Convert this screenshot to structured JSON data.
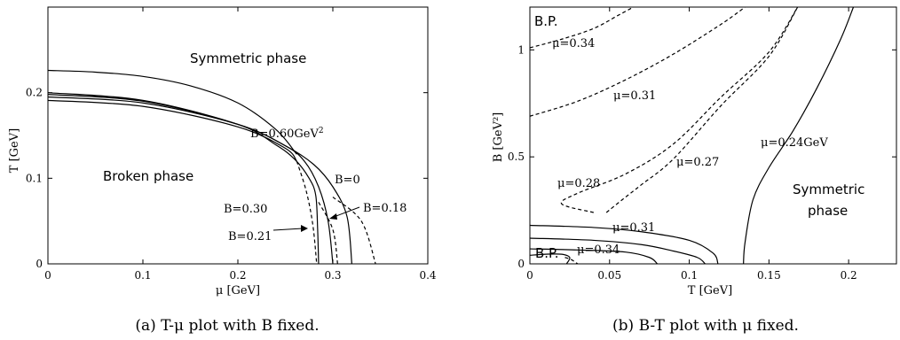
{
  "chart_data": [
    {
      "id": "a",
      "type": "line",
      "caption": "(a) T-μ plot with B fixed.",
      "xlabel": "μ [GeV]",
      "ylabel": "T [GeV]",
      "xlim": [
        0,
        0.4
      ],
      "ylim": [
        0,
        0.3
      ],
      "xticks": [
        "0",
        "0.1",
        "0.2",
        "0.3",
        "0.4"
      ],
      "yticks": [
        "0",
        "0.1",
        "0.2"
      ],
      "annotations": {
        "region_top": "Symmetric phase",
        "region_left": "Broken phase",
        "b060": "B=0.60GeV",
        "b060_sup": "2",
        "b0": "B=0",
        "b018": "B=0.18",
        "b030": "B=0.30",
        "b021": "B=0.21"
      },
      "series": [
        {
          "name": "B=0.60GeV²",
          "style": "solid",
          "points": [
            [
              0,
              0.226
            ],
            [
              0.05,
              0.224
            ],
            [
              0.1,
              0.219
            ],
            [
              0.15,
              0.208
            ],
            [
              0.2,
              0.188
            ],
            [
              0.24,
              0.157
            ],
            [
              0.262,
              0.128
            ]
          ]
        },
        {
          "name": "B=0",
          "style": "solid",
          "points": [
            [
              0,
              0.195
            ],
            [
              0.1,
              0.188
            ],
            [
              0.2,
              0.163
            ],
            [
              0.25,
              0.138
            ],
            [
              0.28,
              0.116
            ],
            [
              0.3,
              0.09
            ],
            [
              0.315,
              0.055
            ],
            [
              0.32,
              0.0
            ]
          ]
        },
        {
          "name": "B=0",
          "style": "dashed",
          "points": [
            [
              0.3,
              0.078
            ],
            [
              0.33,
              0.05
            ],
            [
              0.345,
              0.0
            ]
          ]
        },
        {
          "name": "B=0.18",
          "style": "solid",
          "points": [
            [
              0,
              0.198
            ],
            [
              0.1,
              0.19
            ],
            [
              0.2,
              0.163
            ],
            [
              0.25,
              0.138
            ],
            [
              0.27,
              0.12
            ],
            [
              0.285,
              0.09
            ],
            [
              0.295,
              0.05
            ],
            [
              0.3,
              0.0
            ]
          ]
        },
        {
          "name": "B=0.21",
          "style": "solid",
          "points": [
            [
              0,
              0.2
            ],
            [
              0.1,
              0.191
            ],
            [
              0.2,
              0.163
            ],
            [
              0.24,
              0.139
            ],
            [
              0.26,
              0.122
            ],
            [
              0.275,
              0.1
            ],
            [
              0.282,
              0.08
            ],
            [
              0.284,
              0.04
            ],
            [
              0.285,
              0.0
            ]
          ]
        },
        {
          "name": "B=0.30",
          "style": "solid",
          "points": [
            [
              0,
              0.191
            ],
            [
              0.1,
              0.184
            ],
            [
              0.2,
              0.16
            ],
            [
              0.25,
              0.135
            ],
            [
              0.262,
              0.12
            ]
          ]
        },
        {
          "name": "B=0.30",
          "style": "dashed",
          "points": [
            [
              0.262,
              0.12
            ],
            [
              0.272,
              0.085
            ],
            [
              0.279,
              0.045
            ],
            [
              0.283,
              0.0
            ]
          ]
        },
        {
          "name": "B=0.30",
          "style": "dashed",
          "points": [
            [
              0.285,
              0.072
            ],
            [
              0.3,
              0.04
            ],
            [
              0.305,
              0.0
            ]
          ]
        }
      ]
    },
    {
      "id": "b",
      "type": "line",
      "caption": "(b) B-T plot with μ fixed.",
      "xlabel": "T [GeV]",
      "ylabel": "B [GeV²]",
      "xlim": [
        0,
        0.23
      ],
      "ylim": [
        0,
        1.2
      ],
      "xticks": [
        "0",
        "0.05",
        "0.1",
        "0.15",
        "0.2"
      ],
      "yticks": [
        "0",
        "0.5",
        "1"
      ],
      "annotations": {
        "bp_top": "B.P.",
        "bp_bottom": "B.P.",
        "region": "Symmetric",
        "region2": "phase",
        "m034a": "μ=0.34",
        "m031a": "μ=0.31",
        "m028": "μ=0.28",
        "m027": "μ=0.27",
        "m024": "μ=0.24GeV",
        "m031b": "μ=0.31",
        "m034b": "μ=0.34"
      },
      "series": [
        {
          "name": "μ=0.34",
          "style": "dashed",
          "points": [
            [
              0,
              1.01
            ],
            [
              0.02,
              1.05
            ],
            [
              0.04,
              1.1
            ],
            [
              0.055,
              1.16
            ],
            [
              0.065,
              1.2
            ]
          ]
        },
        {
          "name": "μ=0.31",
          "style": "dashed",
          "points": [
            [
              0,
              0.69
            ],
            [
              0.03,
              0.76
            ],
            [
              0.06,
              0.86
            ],
            [
              0.09,
              0.98
            ],
            [
              0.12,
              1.12
            ],
            [
              0.135,
              1.2
            ]
          ]
        },
        {
          "name": "μ=0.28",
          "style": "dashed",
          "points": [
            [
              0.04,
              0.24
            ],
            [
              0.02,
              0.28
            ],
            [
              0.03,
              0.33
            ],
            [
              0.06,
              0.42
            ],
            [
              0.09,
              0.56
            ],
            [
              0.12,
              0.78
            ],
            [
              0.15,
              0.99
            ],
            [
              0.168,
              1.2
            ]
          ]
        },
        {
          "name": "μ=0.27",
          "style": "dashed",
          "points": [
            [
              0.048,
              0.24
            ],
            [
              0.058,
              0.3
            ],
            [
              0.07,
              0.37
            ],
            [
              0.09,
              0.49
            ],
            [
              0.12,
              0.74
            ],
            [
              0.15,
              0.97
            ],
            [
              0.168,
              1.2
            ]
          ]
        },
        {
          "name": "μ=0.24GeV",
          "style": "solid",
          "points": [
            [
              0.134,
              0.0
            ],
            [
              0.135,
              0.1
            ],
            [
              0.14,
              0.3
            ],
            [
              0.15,
              0.45
            ],
            [
              0.165,
              0.62
            ],
            [
              0.18,
              0.82
            ],
            [
              0.195,
              1.05
            ],
            [
              0.203,
              1.2
            ]
          ]
        },
        {
          "name": "μ=0.31",
          "style": "solid",
          "points": [
            [
              0,
              0.18
            ],
            [
              0.04,
              0.17
            ],
            [
              0.07,
              0.15
            ],
            [
              0.1,
              0.11
            ],
            [
              0.115,
              0.05
            ],
            [
              0.118,
              0.0
            ]
          ]
        },
        {
          "name": "μ=0.31",
          "style": "solid",
          "points": [
            [
              0,
              0.12
            ],
            [
              0.04,
              0.11
            ],
            [
              0.07,
              0.09
            ],
            [
              0.09,
              0.06
            ],
            [
              0.105,
              0.03
            ],
            [
              0.11,
              0.0
            ]
          ]
        },
        {
          "name": "μ=0.34",
          "style": "solid",
          "points": [
            [
              0,
              0.07
            ],
            [
              0.03,
              0.065
            ],
            [
              0.06,
              0.055
            ],
            [
              0.075,
              0.03
            ],
            [
              0.08,
              0.0
            ]
          ]
        },
        {
          "name": "μ=0.34",
          "style": "solid",
          "points": [
            [
              0,
              0.04
            ],
            [
              0.01,
              0.045
            ],
            [
              0.02,
              0.045
            ],
            [
              0.025,
              0.03
            ],
            [
              0.023,
              0.0
            ]
          ]
        },
        {
          "name": "μ=0.34",
          "style": "dashed",
          "points": [
            [
              0.022,
              0.03
            ],
            [
              0.026,
              0.02
            ],
            [
              0.03,
              0.0
            ]
          ]
        }
      ]
    }
  ]
}
